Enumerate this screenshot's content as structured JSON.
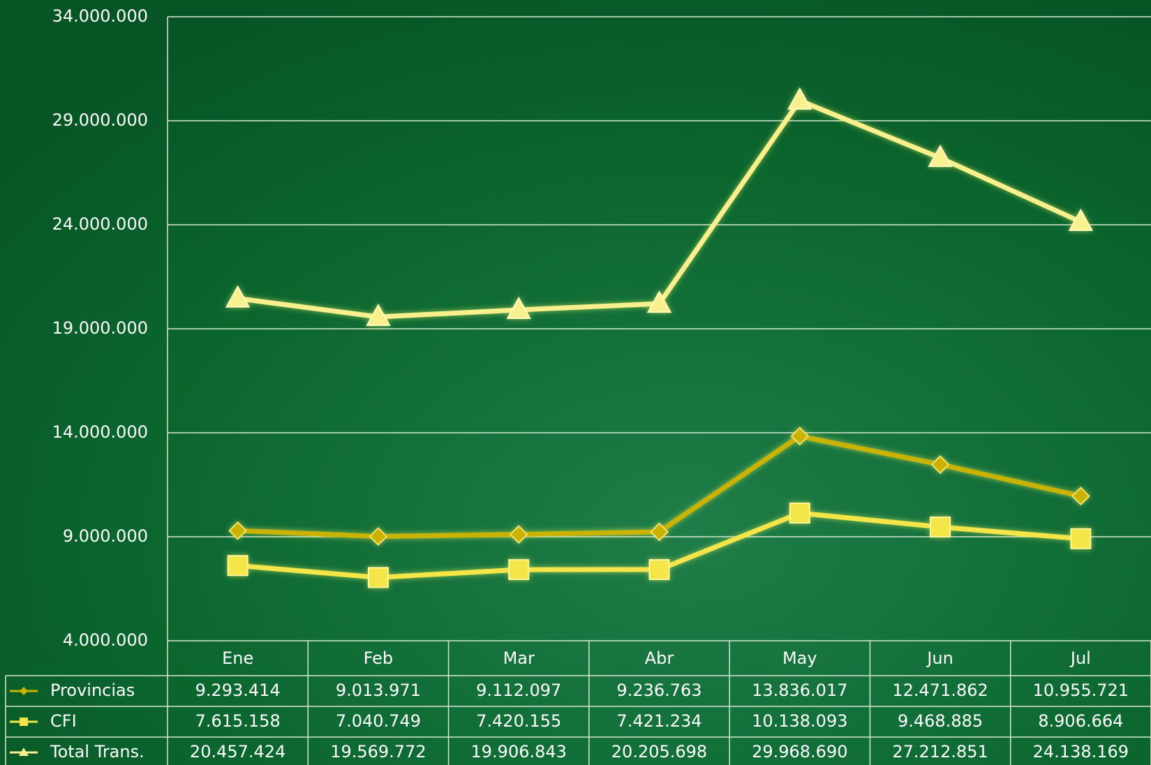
{
  "chart_data": {
    "type": "line",
    "categories": [
      "Ene",
      "Feb",
      "Mar",
      "Abr",
      "May",
      "Jun",
      "Jul"
    ],
    "series": [
      {
        "name": "Provincias",
        "color": "#c9b300",
        "marker": "diamond",
        "values": [
          9293414,
          9013971,
          9112097,
          9236763,
          13836017,
          12471862,
          10955721
        ],
        "value_labels": [
          "9.293.414",
          "9.013.971",
          "9.112.097",
          "9.236.763",
          "13.836.017",
          "12.471.862",
          "10.955.721"
        ]
      },
      {
        "name": "CFI",
        "color": "#f4e64a",
        "marker": "square",
        "values": [
          7615158,
          7040749,
          7420155,
          7421234,
          10138093,
          9468885,
          8906664
        ],
        "value_labels": [
          "7.615.158",
          "7.040.749",
          "7.420.155",
          "7.421.234",
          "10.138.093",
          "9.468.885",
          "8.906.664"
        ]
      },
      {
        "name": "Total Trans.",
        "color": "#f8f08c",
        "marker": "triangle",
        "values": [
          20457424,
          19569772,
          19906843,
          20205698,
          29968690,
          27212851,
          24138169
        ],
        "value_labels": [
          "20.457.424",
          "19.569.772",
          "19.906.843",
          "20.205.698",
          "29.968.690",
          "27.212.851",
          "24.138.169"
        ]
      }
    ],
    "ylim": [
      4000000,
      34000000
    ],
    "yticks": [
      {
        "value": 4000000,
        "label": "4.000.000"
      },
      {
        "value": 9000000,
        "label": "9.000.000"
      },
      {
        "value": 14000000,
        "label": "14.000.000"
      },
      {
        "value": 19000000,
        "label": "19.000.000"
      },
      {
        "value": 24000000,
        "label": "24.000.000"
      },
      {
        "value": 29000000,
        "label": "29.000.000"
      },
      {
        "value": 34000000,
        "label": "34.000.000"
      }
    ],
    "grid": true
  }
}
